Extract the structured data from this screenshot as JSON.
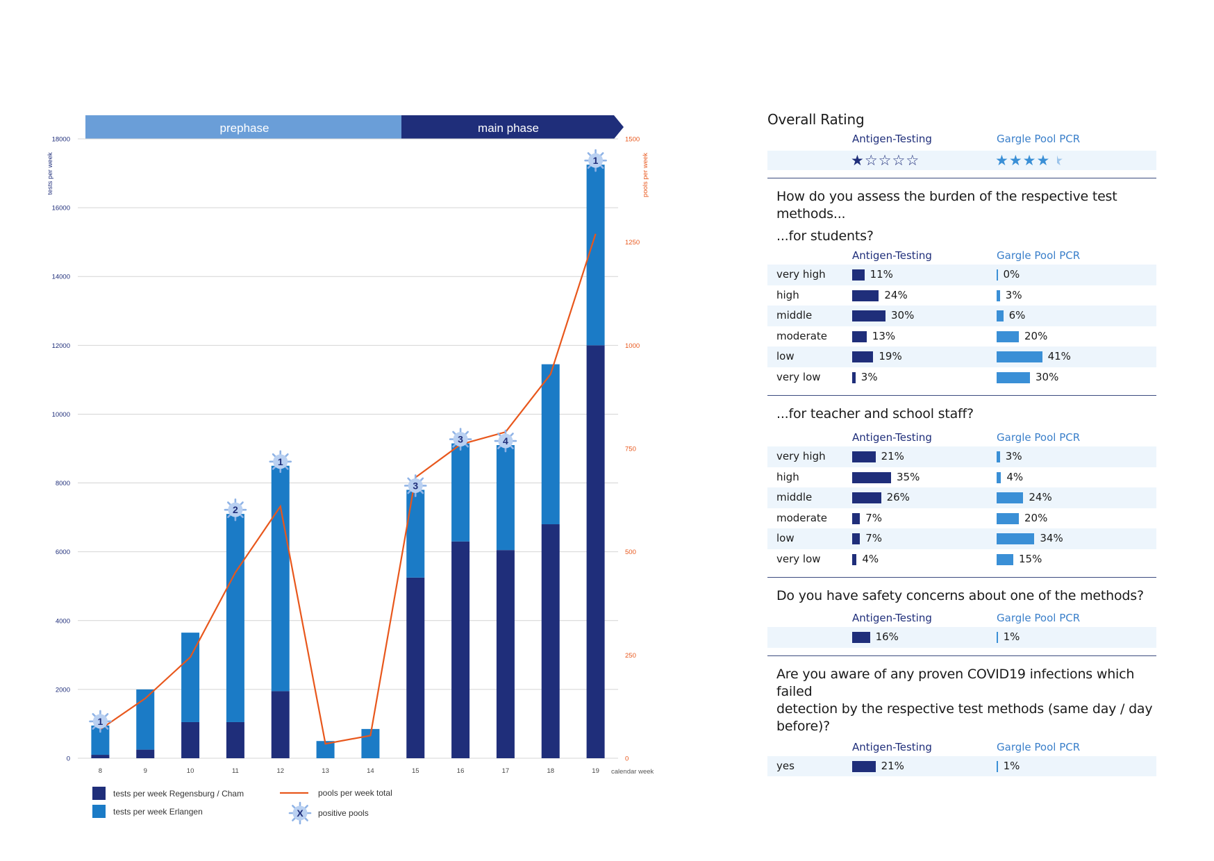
{
  "chart_data": {
    "type": "bar",
    "phases": [
      {
        "label": "prephase"
      },
      {
        "label": "main phase"
      }
    ],
    "categories": [
      "8",
      "9",
      "10",
      "11",
      "12",
      "13",
      "14",
      "15",
      "16",
      "17",
      "18",
      "19"
    ],
    "xlabel": "calendar week",
    "ylabel_left": "tests per week",
    "ylabel_right": "pools per week",
    "ylim_left": [
      0,
      18000
    ],
    "ylim_right": [
      0,
      1500
    ],
    "yticks_left": [
      "0",
      "2000",
      "4000",
      "6000",
      "8000",
      "10000",
      "12000",
      "14000",
      "16000",
      "18000"
    ],
    "yticks_right": [
      "0",
      "250",
      "500",
      "750",
      "1000",
      "1250",
      "1500"
    ],
    "series": [
      {
        "name": "tests per week Regensburg / Cham",
        "color": "#1f2e7a",
        "values": [
          100,
          250,
          1050,
          1050,
          1950,
          0,
          0,
          5250,
          6300,
          6050,
          6800,
          12000
        ]
      },
      {
        "name": "tests per week Erlangen",
        "color": "#1b7bc6",
        "values": [
          850,
          1750,
          2600,
          6050,
          6550,
          500,
          850,
          2550,
          2850,
          3050,
          4650,
          5250
        ]
      },
      {
        "name": "pools per week total",
        "color": "#e8571c",
        "axis": "right",
        "values": [
          70,
          145,
          245,
          450,
          610,
          35,
          55,
          680,
          760,
          790,
          930,
          1270
        ]
      }
    ],
    "positive_pools": [
      {
        "category": "8",
        "count": "1"
      },
      {
        "category": "11",
        "count": "2"
      },
      {
        "category": "12",
        "count": "1"
      },
      {
        "category": "15",
        "count": "3"
      },
      {
        "category": "16",
        "count": "3"
      },
      {
        "category": "17",
        "count": "4"
      },
      {
        "category": "19",
        "count": "1"
      }
    ],
    "positive_pools_label": "positive pools",
    "positive_pools_marker": "X",
    "grid": true,
    "legend": "bottom"
  },
  "survey": {
    "overall": {
      "title": "Overall Rating",
      "antigen_label": "Antigen-Testing",
      "gargle_label": "Gargle Pool PCR",
      "antigen_stars": 1,
      "gargle_stars": 4.5
    },
    "q1": {
      "title_line1": "How do  you assess the burden of the respective test methods...",
      "title_line2": "...for students?",
      "antigen_label": "Antigen-Testing",
      "gargle_label": "Gargle Pool PCR",
      "rows": [
        {
          "label": "very high",
          "a": 11,
          "a_text": "11%",
          "g": 0,
          "g_text": "0%"
        },
        {
          "label": "high",
          "a": 24,
          "a_text": "24%",
          "g": 3,
          "g_text": "3%"
        },
        {
          "label": "middle",
          "a": 30,
          "a_text": "30%",
          "g": 6,
          "g_text": "6%"
        },
        {
          "label": "moderate",
          "a": 13,
          "a_text": "13%",
          "g": 20,
          "g_text": "20%"
        },
        {
          "label": "low",
          "a": 19,
          "a_text": "19%",
          "g": 41,
          "g_text": "41%"
        },
        {
          "label": "very low",
          "a": 3,
          "a_text": "3%",
          "g": 30,
          "g_text": "30%"
        }
      ]
    },
    "q2": {
      "title": "...for teacher and school staff?",
      "antigen_label": "Antigen-Testing",
      "gargle_label": "Gargle Pool PCR",
      "rows": [
        {
          "label": "very high",
          "a": 21,
          "a_text": "21%",
          "g": 3,
          "g_text": "3%"
        },
        {
          "label": "high",
          "a": 35,
          "a_text": "35%",
          "g": 4,
          "g_text": "4%"
        },
        {
          "label": "middle",
          "a": 26,
          "a_text": "26%",
          "g": 24,
          "g_text": "24%"
        },
        {
          "label": "moderate",
          "a": 7,
          "a_text": "7%",
          "g": 20,
          "g_text": "20%"
        },
        {
          "label": "low",
          "a": 7,
          "a_text": "7%",
          "g": 34,
          "g_text": "34%"
        },
        {
          "label": "very low",
          "a": 4,
          "a_text": "4%",
          "g": 15,
          "g_text": "15%"
        }
      ]
    },
    "q3": {
      "title": "Do you have safety concerns about one of the methods?",
      "antigen_label": "Antigen-Testing",
      "gargle_label": "Gargle Pool PCR",
      "rows": [
        {
          "label": "",
          "a": 16,
          "a_text": "16%",
          "g": 1,
          "g_text": "1%"
        }
      ]
    },
    "q4": {
      "title_line1": "Are you aware of any proven COVID19 infections which failed",
      "title_line2": "detection by the respective test methods (same day / day before)?",
      "antigen_label": "Antigen-Testing",
      "gargle_label": "Gargle Pool PCR",
      "rows": [
        {
          "label": "yes",
          "a": 21,
          "a_text": "21%",
          "g": 1,
          "g_text": "1%"
        }
      ]
    }
  }
}
